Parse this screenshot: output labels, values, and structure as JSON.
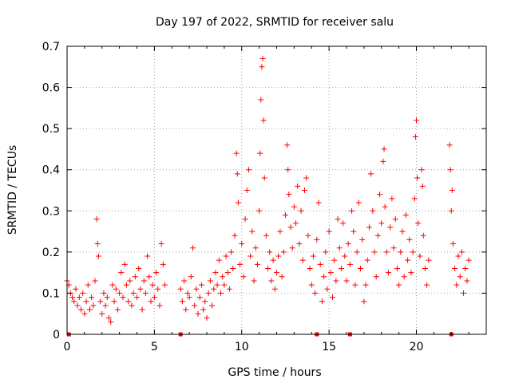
{
  "chart_data": {
    "type": "scatter",
    "title": "Day 197 of 2022, SRMTID for receiver salu",
    "xlabel": "GPS time / hours",
    "ylabel": "SRMTID / TECUs",
    "xlim": [
      0,
      24
    ],
    "ylim": [
      0,
      0.7
    ],
    "xticks": [
      0,
      5,
      10,
      15,
      20
    ],
    "yticks": [
      0,
      0.1,
      0.2,
      0.3,
      0.4,
      0.5,
      0.6,
      0.7
    ],
    "ytick_labels": [
      "0",
      "0.1",
      "0.2",
      "0.3",
      "0.4",
      "0.5",
      "0.6",
      "0.7"
    ],
    "grid": true,
    "marker": "+",
    "color": "#ff0000",
    "series": [
      {
        "name": "SRMTID",
        "points": [
          [
            0.0,
            0.13
          ],
          [
            0.1,
            0.12
          ],
          [
            0.2,
            0.1
          ],
          [
            0.3,
            0.09
          ],
          [
            0.4,
            0.08
          ],
          [
            0.5,
            0.11
          ],
          [
            0.6,
            0.07
          ],
          [
            0.7,
            0.09
          ],
          [
            0.8,
            0.06
          ],
          [
            0.9,
            0.1
          ],
          [
            1.0,
            0.05
          ],
          [
            1.1,
            0.08
          ],
          [
            1.2,
            0.12
          ],
          [
            1.3,
            0.06
          ],
          [
            1.4,
            0.09
          ],
          [
            1.5,
            0.07
          ],
          [
            1.6,
            0.13
          ],
          [
            1.7,
            0.28
          ],
          [
            1.75,
            0.22
          ],
          [
            1.8,
            0.19
          ],
          [
            1.9,
            0.08
          ],
          [
            2.0,
            0.05
          ],
          [
            2.1,
            0.1
          ],
          [
            2.2,
            0.07
          ],
          [
            2.3,
            0.09
          ],
          [
            2.4,
            0.04
          ],
          [
            2.5,
            0.03
          ],
          [
            2.6,
            0.12
          ],
          [
            2.7,
            0.08
          ],
          [
            2.8,
            0.11
          ],
          [
            2.9,
            0.06
          ],
          [
            3.0,
            0.1
          ],
          [
            3.1,
            0.15
          ],
          [
            3.2,
            0.09
          ],
          [
            3.3,
            0.17
          ],
          [
            3.4,
            0.12
          ],
          [
            3.5,
            0.08
          ],
          [
            3.6,
            0.13
          ],
          [
            3.7,
            0.07
          ],
          [
            3.8,
            0.1
          ],
          [
            3.9,
            0.14
          ],
          [
            4.0,
            0.09
          ],
          [
            4.1,
            0.16
          ],
          [
            4.2,
            0.11
          ],
          [
            4.3,
            0.06
          ],
          [
            4.4,
            0.13
          ],
          [
            4.5,
            0.1
          ],
          [
            4.6,
            0.19
          ],
          [
            4.7,
            0.14
          ],
          [
            4.8,
            0.08
          ],
          [
            4.9,
            0.12
          ],
          [
            5.0,
            0.09
          ],
          [
            5.1,
            0.15
          ],
          [
            5.2,
            0.11
          ],
          [
            5.3,
            0.07
          ],
          [
            5.4,
            0.22
          ],
          [
            5.5,
            0.17
          ],
          [
            5.6,
            0.12
          ],
          [
            6.5,
            0.11
          ],
          [
            6.6,
            0.08
          ],
          [
            6.7,
            0.13
          ],
          [
            6.8,
            0.06
          ],
          [
            6.9,
            0.1
          ],
          [
            7.0,
            0.09
          ],
          [
            7.1,
            0.14
          ],
          [
            7.2,
            0.21
          ],
          [
            7.3,
            0.07
          ],
          [
            7.4,
            0.11
          ],
          [
            7.5,
            0.05
          ],
          [
            7.6,
            0.09
          ],
          [
            7.7,
            0.12
          ],
          [
            7.8,
            0.06
          ],
          [
            7.9,
            0.08
          ],
          [
            8.0,
            0.04
          ],
          [
            8.1,
            0.1
          ],
          [
            8.2,
            0.13
          ],
          [
            8.3,
            0.07
          ],
          [
            8.4,
            0.11
          ],
          [
            8.5,
            0.15
          ],
          [
            8.6,
            0.12
          ],
          [
            8.7,
            0.18
          ],
          [
            8.8,
            0.1
          ],
          [
            8.9,
            0.14
          ],
          [
            9.0,
            0.12
          ],
          [
            9.1,
            0.19
          ],
          [
            9.2,
            0.15
          ],
          [
            9.3,
            0.11
          ],
          [
            9.4,
            0.2
          ],
          [
            9.5,
            0.16
          ],
          [
            9.6,
            0.24
          ],
          [
            9.7,
            0.44
          ],
          [
            9.75,
            0.39
          ],
          [
            9.8,
            0.32
          ],
          [
            9.9,
            0.17
          ],
          [
            10.0,
            0.22
          ],
          [
            10.1,
            0.14
          ],
          [
            10.2,
            0.28
          ],
          [
            10.3,
            0.35
          ],
          [
            10.4,
            0.4
          ],
          [
            10.5,
            0.19
          ],
          [
            10.6,
            0.25
          ],
          [
            10.7,
            0.13
          ],
          [
            10.8,
            0.21
          ],
          [
            10.9,
            0.17
          ],
          [
            11.0,
            0.3
          ],
          [
            11.05,
            0.44
          ],
          [
            11.1,
            0.57
          ],
          [
            11.15,
            0.65
          ],
          [
            11.2,
            0.67
          ],
          [
            11.25,
            0.52
          ],
          [
            11.3,
            0.38
          ],
          [
            11.4,
            0.24
          ],
          [
            11.5,
            0.16
          ],
          [
            11.6,
            0.2
          ],
          [
            11.7,
            0.13
          ],
          [
            11.8,
            0.18
          ],
          [
            11.9,
            0.11
          ],
          [
            12.0,
            0.15
          ],
          [
            12.1,
            0.19
          ],
          [
            12.2,
            0.25
          ],
          [
            12.3,
            0.14
          ],
          [
            12.4,
            0.2
          ],
          [
            12.5,
            0.29
          ],
          [
            12.6,
            0.46
          ],
          [
            12.65,
            0.4
          ],
          [
            12.7,
            0.34
          ],
          [
            12.8,
            0.26
          ],
          [
            12.9,
            0.21
          ],
          [
            13.0,
            0.31
          ],
          [
            13.1,
            0.27
          ],
          [
            13.2,
            0.36
          ],
          [
            13.3,
            0.22
          ],
          [
            13.4,
            0.3
          ],
          [
            13.5,
            0.18
          ],
          [
            13.6,
            0.35
          ],
          [
            13.7,
            0.38
          ],
          [
            13.8,
            0.24
          ],
          [
            13.9,
            0.16
          ],
          [
            14.0,
            0.12
          ],
          [
            14.1,
            0.19
          ],
          [
            14.2,
            0.1
          ],
          [
            14.3,
            0.23
          ],
          [
            14.4,
            0.32
          ],
          [
            14.5,
            0.17
          ],
          [
            14.6,
            0.08
          ],
          [
            14.7,
            0.14
          ],
          [
            14.8,
            0.2
          ],
          [
            14.9,
            0.11
          ],
          [
            15.0,
            0.25
          ],
          [
            15.1,
            0.15
          ],
          [
            15.2,
            0.09
          ],
          [
            15.3,
            0.18
          ],
          [
            15.4,
            0.13
          ],
          [
            15.5,
            0.28
          ],
          [
            15.6,
            0.21
          ],
          [
            15.7,
            0.16
          ],
          [
            15.8,
            0.27
          ],
          [
            15.9,
            0.19
          ],
          [
            16.0,
            0.13
          ],
          [
            16.1,
            0.22
          ],
          [
            16.2,
            0.17
          ],
          [
            16.3,
            0.3
          ],
          [
            16.4,
            0.25
          ],
          [
            16.5,
            0.12
          ],
          [
            16.6,
            0.2
          ],
          [
            16.7,
            0.32
          ],
          [
            16.8,
            0.16
          ],
          [
            16.9,
            0.23
          ],
          [
            17.0,
            0.08
          ],
          [
            17.1,
            0.12
          ],
          [
            17.2,
            0.18
          ],
          [
            17.3,
            0.26
          ],
          [
            17.4,
            0.39
          ],
          [
            17.5,
            0.3
          ],
          [
            17.6,
            0.2
          ],
          [
            17.7,
            0.14
          ],
          [
            17.8,
            0.24
          ],
          [
            17.9,
            0.34
          ],
          [
            18.0,
            0.27
          ],
          [
            18.1,
            0.42
          ],
          [
            18.15,
            0.45
          ],
          [
            18.2,
            0.31
          ],
          [
            18.3,
            0.2
          ],
          [
            18.4,
            0.15
          ],
          [
            18.5,
            0.26
          ],
          [
            18.6,
            0.33
          ],
          [
            18.7,
            0.21
          ],
          [
            18.8,
            0.28
          ],
          [
            18.9,
            0.16
          ],
          [
            19.0,
            0.12
          ],
          [
            19.1,
            0.2
          ],
          [
            19.2,
            0.25
          ],
          [
            19.3,
            0.14
          ],
          [
            19.4,
            0.29
          ],
          [
            19.5,
            0.18
          ],
          [
            19.6,
            0.23
          ],
          [
            19.7,
            0.15
          ],
          [
            19.8,
            0.2
          ],
          [
            19.9,
            0.33
          ],
          [
            19.95,
            0.48
          ],
          [
            20.0,
            0.52
          ],
          [
            20.05,
            0.38
          ],
          [
            20.1,
            0.27
          ],
          [
            20.2,
            0.19
          ],
          [
            20.3,
            0.4
          ],
          [
            20.35,
            0.36
          ],
          [
            20.4,
            0.24
          ],
          [
            20.5,
            0.16
          ],
          [
            20.6,
            0.12
          ],
          [
            20.7,
            0.18
          ],
          [
            21.9,
            0.46
          ],
          [
            21.95,
            0.4
          ],
          [
            22.0,
            0.3
          ],
          [
            22.05,
            0.35
          ],
          [
            22.1,
            0.22
          ],
          [
            22.2,
            0.16
          ],
          [
            22.3,
            0.12
          ],
          [
            22.4,
            0.19
          ],
          [
            22.5,
            0.14
          ],
          [
            22.6,
            0.2
          ],
          [
            22.7,
            0.1
          ],
          [
            22.8,
            0.16
          ],
          [
            22.9,
            0.13
          ],
          [
            23.0,
            0.18
          ]
        ]
      }
    ],
    "zero_markers": [
      0.1,
      6.5,
      14.3,
      16.2,
      22.0
    ]
  }
}
